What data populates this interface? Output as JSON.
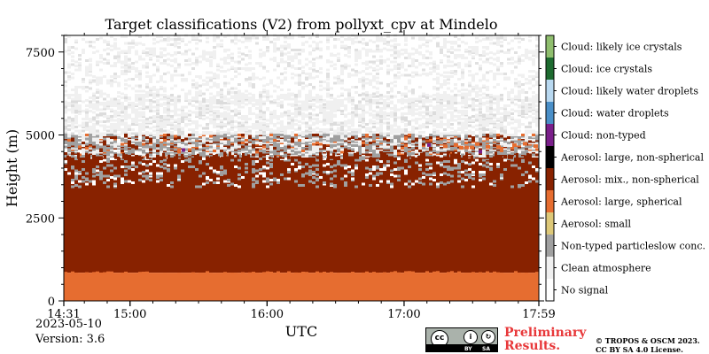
{
  "chart_data": {
    "type": "heatmap",
    "title": "Target classifications (V2) from pollyxt_cpv at Mindelo",
    "xlabel": "UTC",
    "ylabel": "Height (m)",
    "x_range": [
      "14:31",
      "17:59"
    ],
    "ylim": [
      0,
      8000
    ],
    "x_ticks": [
      "14:31",
      "15:00",
      "16:00",
      "17:00",
      "17:59"
    ],
    "y_ticks": [
      "0",
      "2500",
      "5000",
      "7500"
    ],
    "classes": [
      {
        "name": "No signal",
        "color": "#ffffff"
      },
      {
        "name": "Clean atmosphere",
        "color": "#f0f0f0"
      },
      {
        "name": "Non-typed particleslow conc.",
        "color": "#a0a0a0"
      },
      {
        "name": "Aerosol: small",
        "color": "#ddc878"
      },
      {
        "name": "Aerosol: large, spherical",
        "color": "#e66d30"
      },
      {
        "name": "Aerosol: mix., non-spherical",
        "color": "#882200"
      },
      {
        "name": "Aerosol: large, non-spherical",
        "color": "#000000"
      },
      {
        "name": "Cloud: non-typed",
        "color": "#7a1f8a"
      },
      {
        "name": "Cloud: water droplets",
        "color": "#4a8fc8"
      },
      {
        "name": "Cloud: likely water droplets",
        "color": "#b8d8f0"
      },
      {
        "name": "Cloud: ice crystals",
        "color": "#1e6b30"
      },
      {
        "name": "Cloud: likely ice crystals",
        "color": "#8fbe6e"
      }
    ],
    "layers": [
      {
        "class": "Aerosol: large, spherical",
        "from_m": 0,
        "to_m": 850
      },
      {
        "class": "Aerosol: mix., non-spherical",
        "from_m": 850,
        "to_m": 4400
      },
      {
        "class": "Non-typed particleslow conc.",
        "from_m": 3800,
        "to_m": 5000
      },
      {
        "class": "Clean atmosphere",
        "from_m": 4500,
        "to_m": 8000
      }
    ]
  },
  "info": {
    "date": "2023-05-10",
    "version": "Version: 3.6"
  },
  "footer": {
    "preliminary_line1": "Preliminary",
    "preliminary_line2": "Results.",
    "copyright_line1": "© TROPOS & OSCM 2023.",
    "copyright_line2": "CC BY SA 4.0 License.",
    "badge_cc": "cc",
    "badge_by": "BY",
    "badge_sa": "SA",
    "accent": "#e8383a"
  }
}
